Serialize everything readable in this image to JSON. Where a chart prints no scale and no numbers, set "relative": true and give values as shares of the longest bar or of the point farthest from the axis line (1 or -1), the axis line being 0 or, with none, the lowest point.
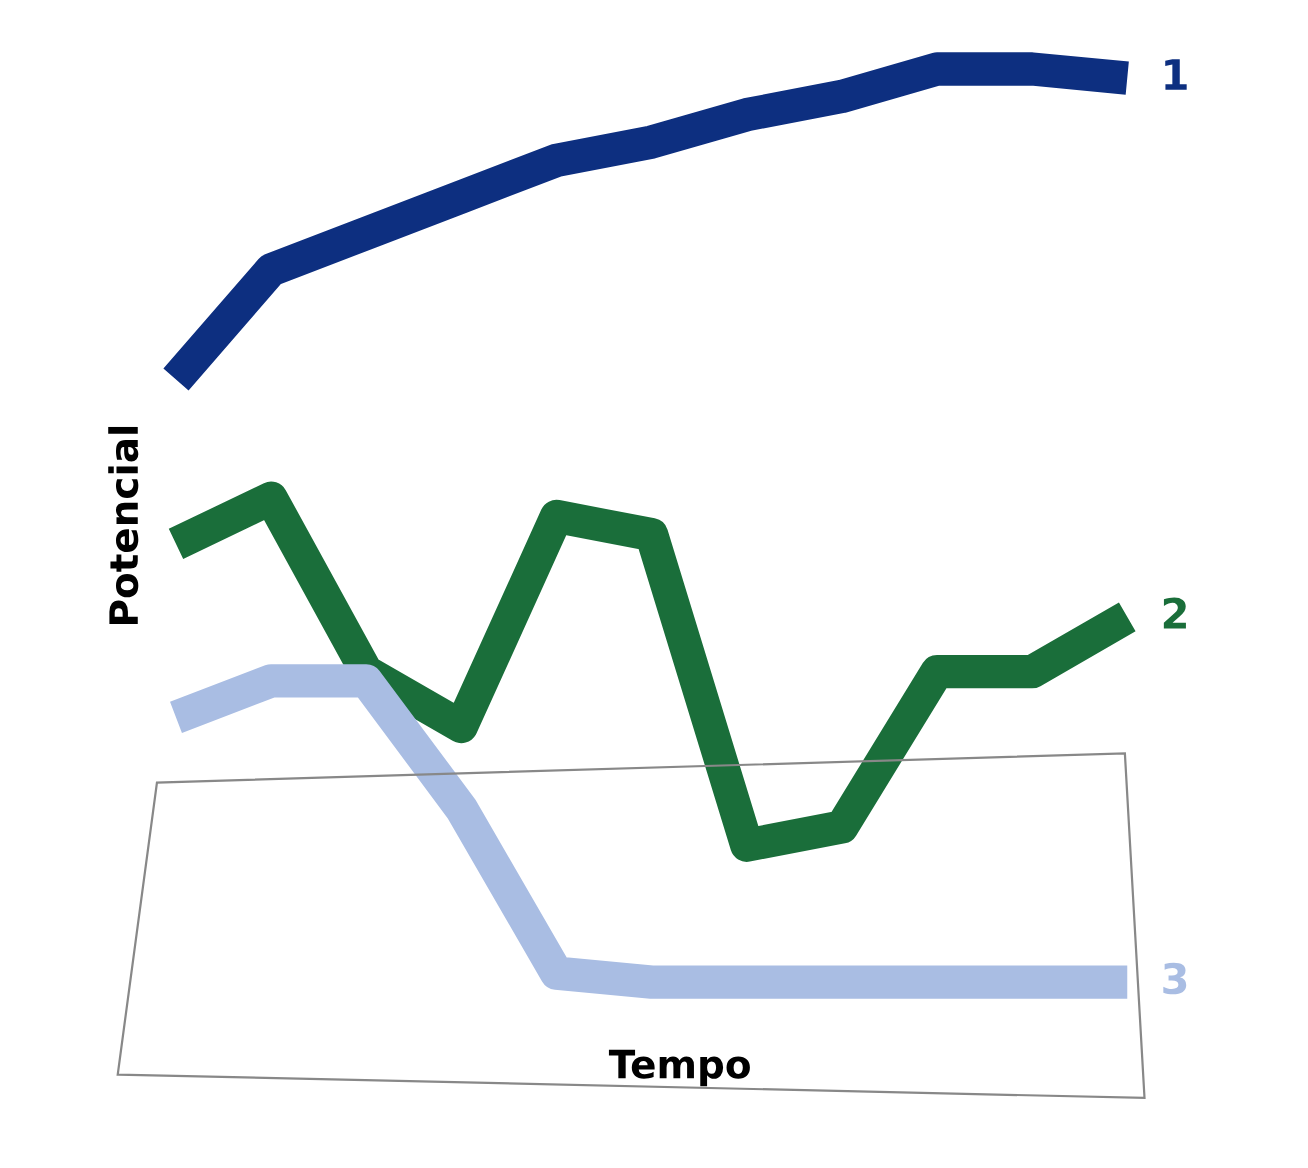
{
  "chart_data": {
    "type": "line",
    "xlabel": "Tempo",
    "ylabel": "Potencial",
    "relative": true,
    "grid": false,
    "legend": false,
    "marker": "none",
    "line_style": "solid",
    "categories": [
      null,
      null,
      null,
      null,
      null,
      null,
      null,
      null,
      null,
      null,
      null
    ],
    "series": [
      {
        "name": "1",
        "color": "#0d2f80",
        "values": [
          0.66,
          0.78,
          0.82,
          0.86,
          0.9,
          0.92,
          0.95,
          0.97,
          1.0,
          1.0,
          0.99
        ]
      },
      {
        "name": "2",
        "color": "#1a6e3a",
        "values": [
          0.48,
          0.53,
          0.34,
          0.28,
          0.51,
          0.49,
          0.15,
          0.17,
          0.34,
          0.34,
          0.4
        ]
      },
      {
        "name": "3",
        "color": "#a9bde3",
        "values": [
          0.29,
          0.33,
          0.33,
          0.19,
          0.01,
          0,
          0,
          0,
          0,
          0,
          0
        ]
      }
    ]
  }
}
